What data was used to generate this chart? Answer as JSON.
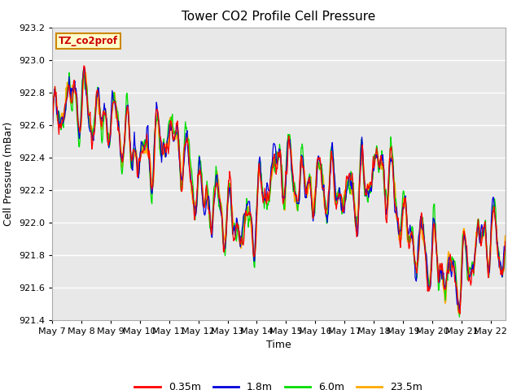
{
  "title": "Tower CO2 Profile Cell Pressure",
  "xlabel": "Time",
  "ylabel": "Cell Pressure (mBar)",
  "ylim": [
    921.4,
    923.2
  ],
  "xlim": [
    0,
    15.5
  ],
  "background_color": "#ffffff",
  "plot_bg_color": "#e8e8e8",
  "grid_color": "#ffffff",
  "series_colors": [
    "#ff0000",
    "#0000dd",
    "#00dd00",
    "#ffaa00"
  ],
  "series_labels": [
    "0.35m",
    "1.8m",
    "6.0m",
    "23.5m"
  ],
  "x_tick_labels": [
    "May 7",
    "May 8",
    "May 9",
    "May 10",
    "May 11",
    "May 12",
    "May 13",
    "May 14",
    "May 15",
    "May 16",
    "May 17",
    "May 18",
    "May 19",
    "May 20",
    "May 21",
    "May 22"
  ],
  "yticks": [
    921.4,
    921.6,
    921.8,
    922.0,
    922.2,
    922.4,
    922.6,
    922.8,
    923.0,
    923.2
  ],
  "annotation_text": "TZ_co2prof",
  "annotation_bg": "#ffffcc",
  "annotation_border": "#cc8800",
  "annotation_text_color": "#cc0000",
  "title_fontsize": 11,
  "axis_label_fontsize": 9,
  "tick_fontsize": 8
}
